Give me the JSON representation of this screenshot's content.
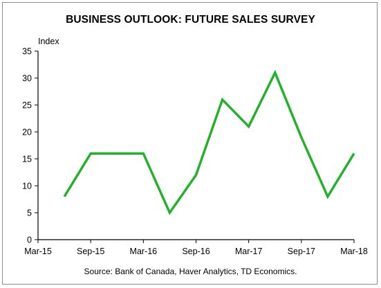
{
  "chart_data": {
    "type": "line",
    "title": "BUSINESS OUTLOOK: FUTURE SALES SURVEY",
    "ylabel": "Index",
    "xlabel": "",
    "source": "Source: Bank of Canada, Haver Analytics, TD Economics.",
    "ylim": [
      0,
      35
    ],
    "yticks": [
      0,
      5,
      10,
      15,
      20,
      25,
      30,
      35
    ],
    "x_tick_labels": [
      "Mar-15",
      "Sep-15",
      "Mar-16",
      "Sep-16",
      "Mar-17",
      "Sep-17",
      "Mar-18"
    ],
    "x_tick_dates": [
      "2015-03",
      "2015-09",
      "2016-03",
      "2016-09",
      "2017-03",
      "2017-09",
      "2018-03"
    ],
    "xlim": [
      "2015-03",
      "2018-03"
    ],
    "grid": false,
    "series": [
      {
        "color": "#22b22a",
        "x": [
          "2015-06",
          "2015-09",
          "2015-12",
          "2016-03",
          "2016-06",
          "2016-09",
          "2016-12",
          "2017-03",
          "2017-06",
          "2017-09",
          "2017-12",
          "2018-03"
        ],
        "values": [
          8,
          16,
          16,
          16,
          5,
          12,
          26,
          21,
          31,
          19,
          8,
          16
        ]
      }
    ]
  }
}
